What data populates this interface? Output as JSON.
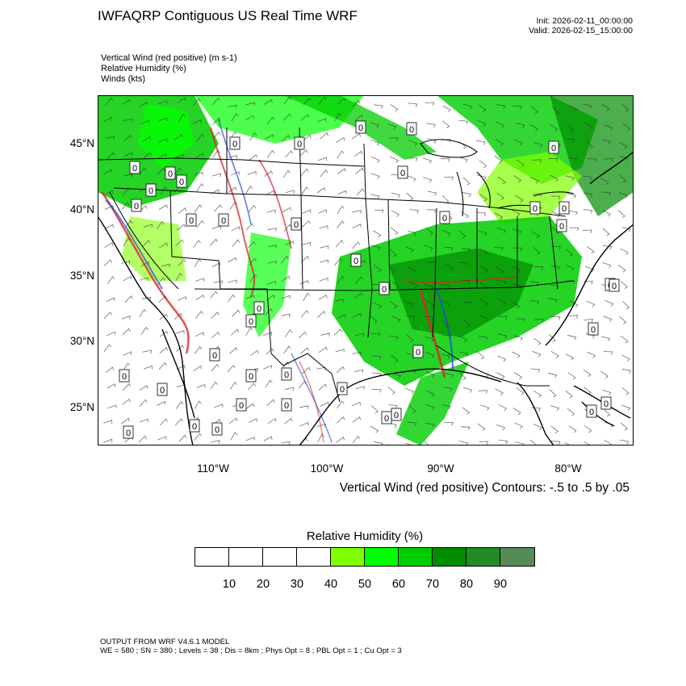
{
  "header": {
    "title": "IWFAQRP Contiguous US Real Time WRF",
    "init": "Init: 2026-02-11_00:00:00",
    "valid": "Valid: 2026-02-15_15:00:00"
  },
  "variables": [
    "Vertical Wind (red positive)   (m s-1)",
    "Relative Humidity   (%)",
    "Winds   (kts)"
  ],
  "map": {
    "lat_labels": [
      "45°N",
      "40°N",
      "35°N",
      "30°N",
      "25°N"
    ],
    "lon_labels": [
      "110°W",
      "100°W",
      "90°W",
      "80°W"
    ],
    "lat_values": [
      45,
      40,
      35,
      30,
      25
    ],
    "lon_values": [
      -110,
      -100,
      -90,
      -80
    ],
    "station_value": "0",
    "colors": {
      "positive_wind": "#e0222a",
      "negative_wind": "#2447d8",
      "barbs": "#333333",
      "borders": "#000000"
    }
  },
  "contour_note": "Vertical Wind (red positive) Contours: -.5 to .5 by .05",
  "legend": {
    "title": "Relative Humidity  (%)",
    "colors": [
      "#ffffff",
      "#ffffff",
      "#ffffff",
      "#ffffff",
      "#80ff00",
      "#00ff00",
      "#00cd00",
      "#008b00",
      "#238b23",
      "#558b55"
    ],
    "labels": [
      "10",
      "20",
      "30",
      "40",
      "50",
      "60",
      "70",
      "80",
      "90"
    ]
  },
  "footer": {
    "line1": "OUTPUT FROM WRF V4.6.1 MODEL",
    "line2": "WE = 580 ; SN = 380 ; Levels = 38 ; Dis = 8km ; Phys Opt = 8 ; PBL Opt = 1 ; Cu Opt = 3"
  }
}
